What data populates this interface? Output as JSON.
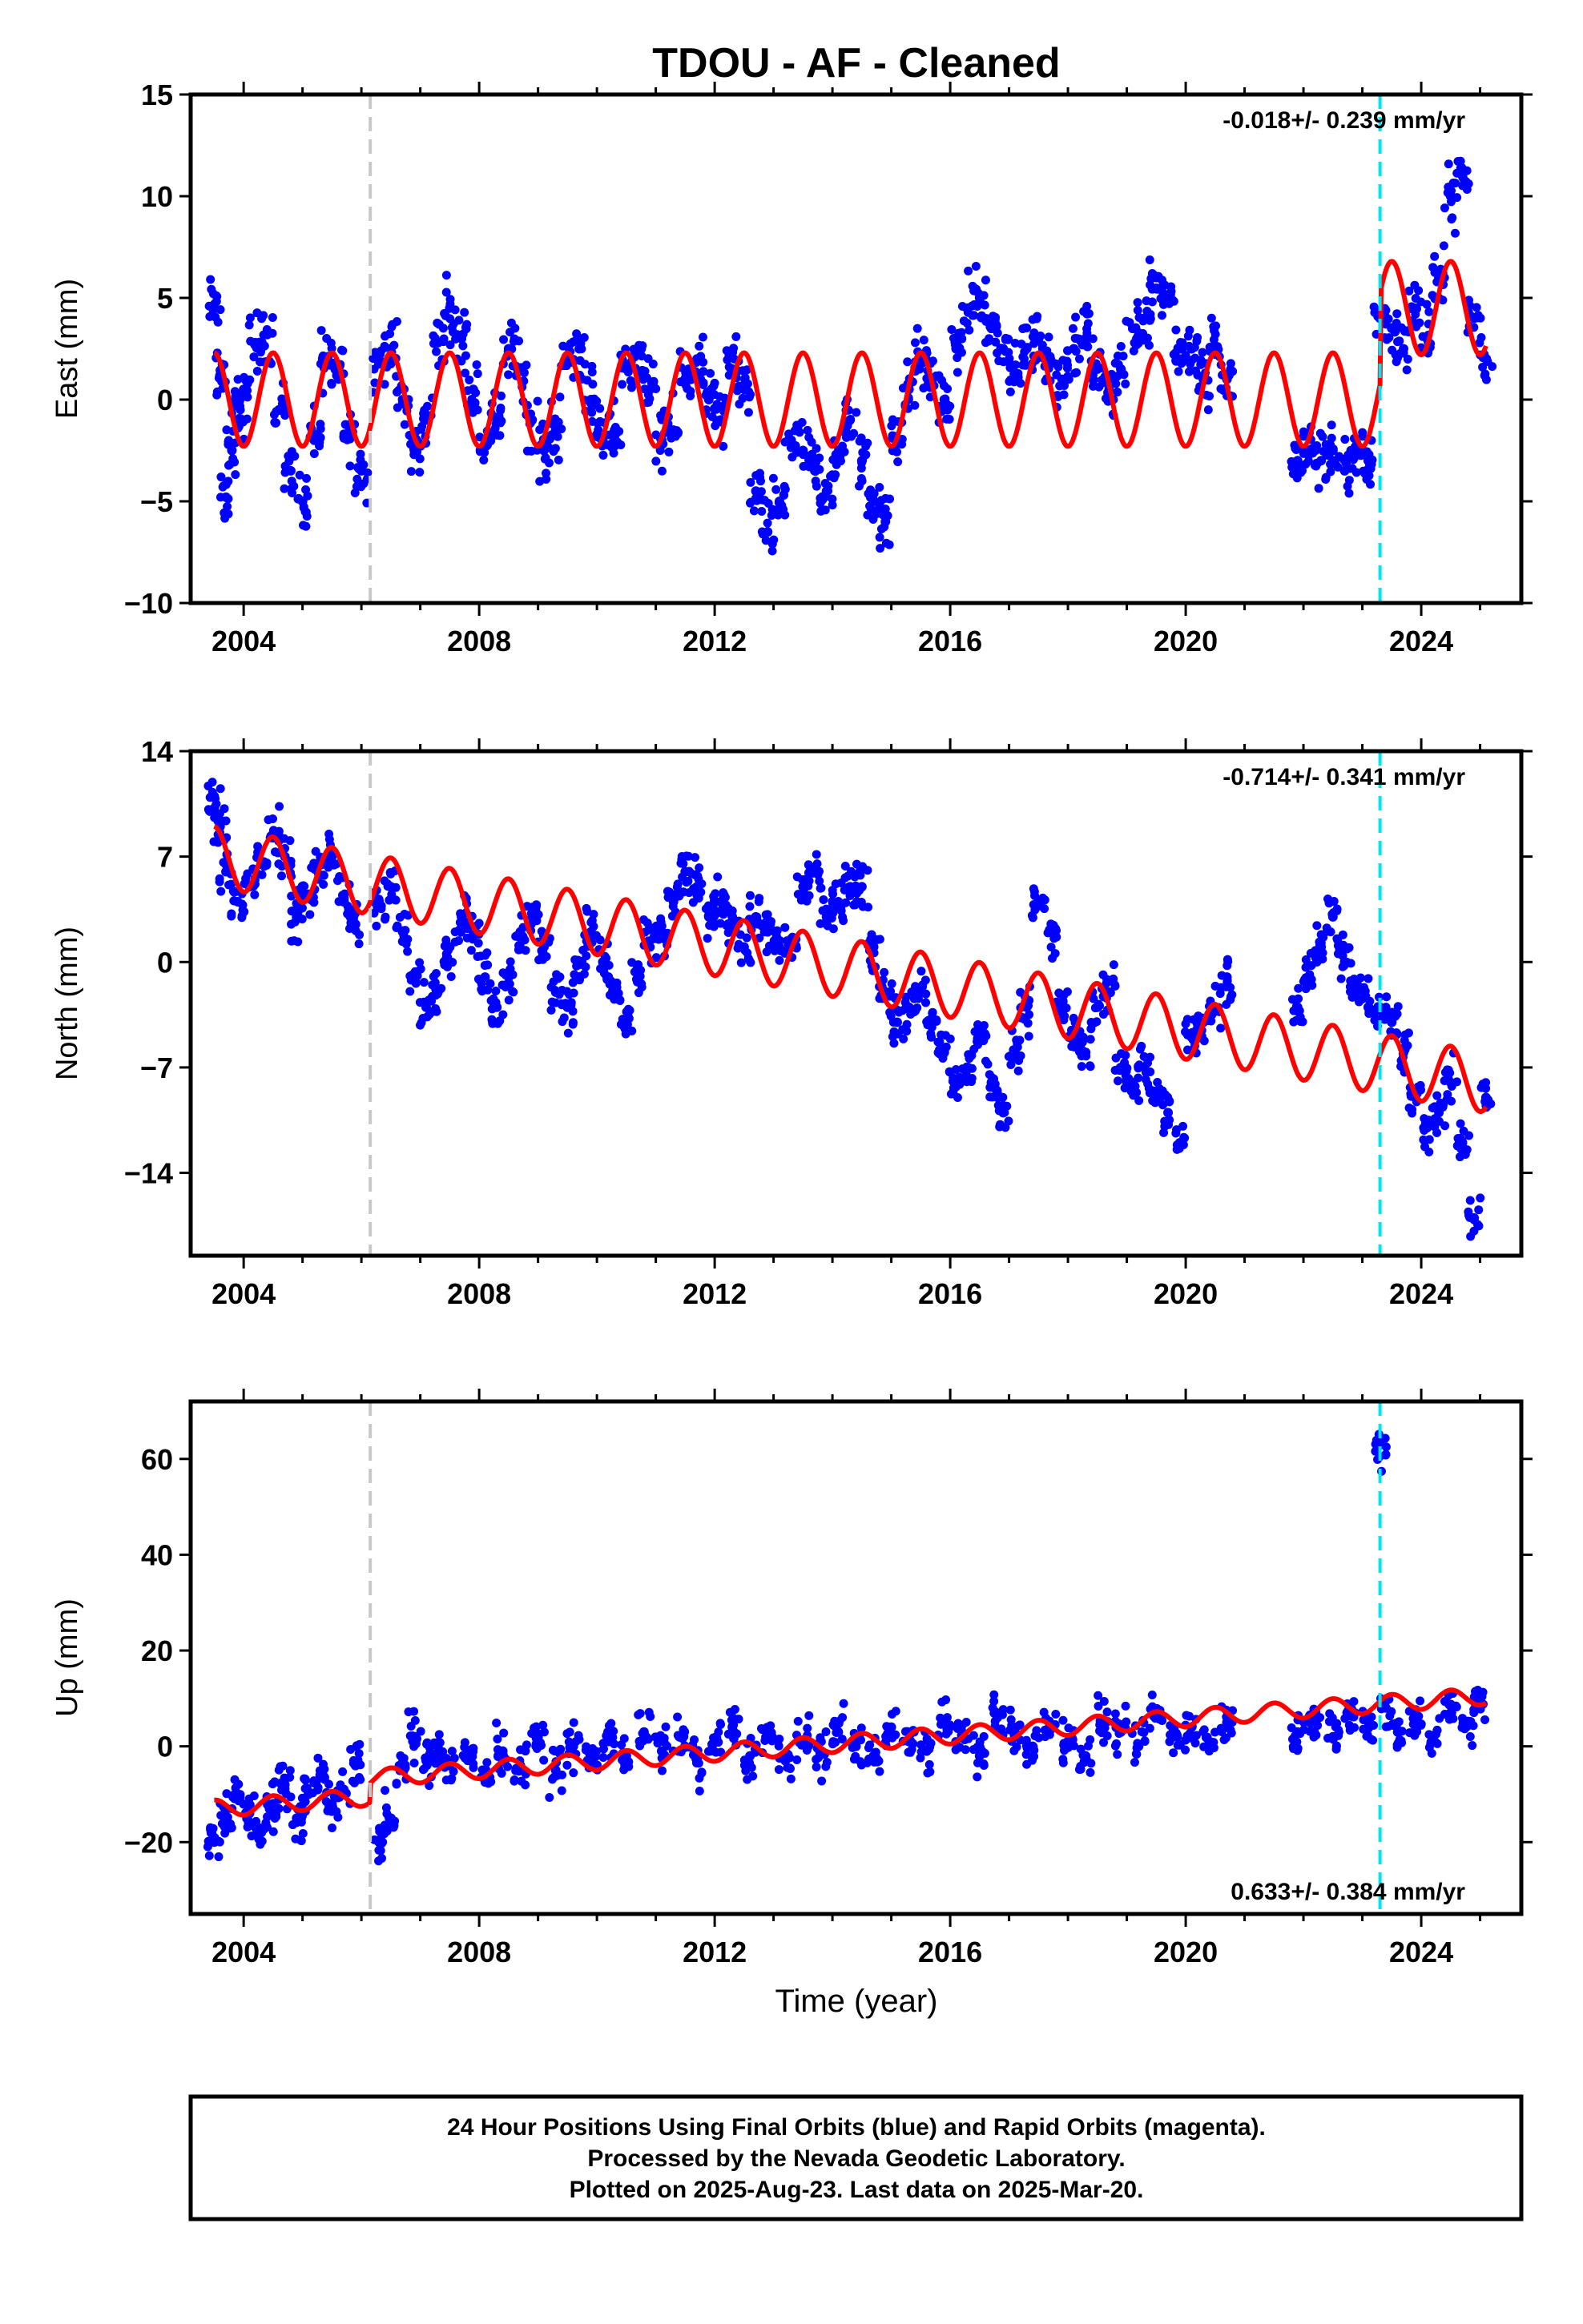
{
  "figure": {
    "title": "TDOU  - AF - Cleaned",
    "xlabel": "Time (year)"
  },
  "colors": {
    "points": "#0000ff",
    "fit": "#ff0000",
    "equipment_change": "#c8c8c8",
    "event_line": "#00e5ee"
  },
  "chart_data": [
    {
      "type": "scatter",
      "ylabel": "East (mm)",
      "xlim": [
        2003.1,
        2025.7
      ],
      "ylim": [
        -10,
        15
      ],
      "yticks": [
        -10,
        -5,
        0,
        5,
        10,
        15
      ],
      "ytick_labels": [
        "−10",
        "−5",
        "0",
        "5",
        "10",
        "15"
      ],
      "xticks": [
        2004,
        2008,
        2012,
        2016,
        2020,
        2024
      ],
      "xtick_labels": [
        "2004",
        "2008",
        "2012",
        "2016",
        "2020",
        "2024"
      ],
      "rate_label": "-0.018+/- 0.239 mm/yr",
      "rate_position": "top-right",
      "vlines": [
        {
          "x": 2006.15,
          "style": "gray-dashed"
        },
        {
          "x": 2023.3,
          "style": "cyan-dashed"
        }
      ],
      "series": [
        {
          "kind": "points",
          "x": [
            2003.5,
            2003.6,
            2003.7,
            2003.8,
            2003.9,
            2004.0,
            2004.2,
            2004.4,
            2004.6,
            2004.8,
            2005.0,
            2005.2,
            2005.4,
            2005.6,
            2005.8,
            2006.0,
            2006.3,
            2006.5,
            2006.7,
            2006.9,
            2007.1,
            2007.3,
            2007.5,
            2007.7,
            2007.9,
            2008.1,
            2008.3,
            2008.5,
            2008.7,
            2008.9,
            2009.1,
            2009.3,
            2009.5,
            2009.7,
            2009.9,
            2010.1,
            2010.3,
            2010.5,
            2010.7,
            2010.9,
            2011.1,
            2011.3,
            2011.5,
            2011.7,
            2011.9,
            2012.1,
            2012.3,
            2012.5,
            2012.7,
            2012.9,
            2013.1,
            2013.3,
            2013.5,
            2013.7,
            2013.9,
            2014.1,
            2014.3,
            2014.5,
            2014.7,
            2014.9,
            2015.1,
            2015.3,
            2015.5,
            2015.7,
            2015.9,
            2016.1,
            2016.3,
            2016.5,
            2016.7,
            2016.9,
            2017.1,
            2017.3,
            2017.5,
            2017.7,
            2017.9,
            2018.1,
            2018.3,
            2018.5,
            2018.7,
            2018.9,
            2019.1,
            2019.3,
            2019.5,
            2019.7,
            2019.9,
            2020.1,
            2020.3,
            2020.5,
            2020.7,
            2021.9,
            2022.1,
            2022.3,
            2022.5,
            2022.7,
            2022.9,
            2023.1,
            2023.3,
            2023.5,
            2023.7,
            2023.9,
            2024.1,
            2024.3,
            2024.5,
            2024.7,
            2024.9,
            2025.1
          ],
          "y": [
            4.5,
            1.2,
            -4.8,
            -2.5,
            -1.0,
            0.5,
            2.8,
            3.2,
            -0.5,
            -3.5,
            -5.0,
            -2.0,
            2.0,
            1.5,
            -1.5,
            -3.5,
            1.8,
            2.5,
            0.0,
            -2.5,
            -1.0,
            2.8,
            4.5,
            3.0,
            0.5,
            -2.0,
            -1.0,
            2.5,
            1.5,
            -1.0,
            -2.5,
            -1.5,
            2.0,
            2.5,
            0.0,
            -2.0,
            -1.5,
            1.5,
            2.5,
            0.5,
            -2.0,
            -1.5,
            1.0,
            2.0,
            0.0,
            -1.0,
            1.5,
            0.5,
            -4.5,
            -6.5,
            -5.0,
            -2.0,
            -2.5,
            -3.5,
            -4.5,
            -3.0,
            -1.0,
            -3.0,
            -5.0,
            -6.0,
            -2.0,
            0.5,
            2.0,
            1.0,
            0.0,
            2.5,
            4.5,
            5.0,
            3.5,
            2.5,
            1.0,
            2.5,
            3.0,
            2.0,
            1.0,
            2.5,
            3.0,
            1.5,
            0.5,
            1.5,
            3.5,
            4.0,
            6.0,
            5.0,
            2.5,
            2.5,
            1.0,
            2.5,
            1.0,
            -3.0,
            -2.5,
            -3.0,
            -2.5,
            -3.5,
            -2.5,
            -3.0,
            4.0,
            3.5,
            2.5,
            4.5,
            3.0,
            6.0,
            10.0,
            11.0,
            4.0,
            2.0
          ]
        },
        {
          "kind": "fit",
          "amplitude": 2.3,
          "offset_start": 0.0,
          "offset_end": 0.0,
          "step": [
            {
              "x": 2023.3,
              "amount": 4.5
            }
          ]
        }
      ]
    },
    {
      "type": "scatter",
      "ylabel": "North (mm)",
      "xlim": [
        2003.1,
        2025.7
      ],
      "ylim": [
        -19.5,
        14
      ],
      "yticks": [
        -14,
        -7,
        0,
        7,
        14
      ],
      "ytick_labels": [
        "−14",
        "−7",
        "0",
        "7",
        "14"
      ],
      "xticks": [
        2004,
        2008,
        2012,
        2016,
        2020,
        2024
      ],
      "xtick_labels": [
        "2004",
        "2008",
        "2012",
        "2016",
        "2020",
        "2024"
      ],
      "rate_label": "-0.714+/- 0.341 mm/yr",
      "rate_position": "top-right",
      "vlines": [
        {
          "x": 2006.15,
          "style": "gray-dashed"
        },
        {
          "x": 2023.3,
          "style": "cyan-dashed"
        }
      ],
      "series": [
        {
          "kind": "points",
          "x": [
            2003.5,
            2003.6,
            2003.7,
            2003.9,
            2004.1,
            2004.3,
            2004.5,
            2004.7,
            2004.9,
            2005.1,
            2005.3,
            2005.5,
            2005.7,
            2005.9,
            2006.3,
            2006.5,
            2006.7,
            2006.9,
            2007.1,
            2007.3,
            2007.5,
            2007.7,
            2007.9,
            2008.1,
            2008.3,
            2008.5,
            2008.7,
            2008.9,
            2009.1,
            2009.3,
            2009.5,
            2009.7,
            2009.9,
            2010.1,
            2010.3,
            2010.5,
            2010.7,
            2010.9,
            2011.1,
            2011.3,
            2011.5,
            2011.7,
            2011.9,
            2012.1,
            2012.3,
            2012.5,
            2012.7,
            2012.9,
            2013.1,
            2013.3,
            2013.5,
            2013.7,
            2013.9,
            2014.1,
            2014.3,
            2014.5,
            2014.7,
            2014.9,
            2015.1,
            2015.3,
            2015.5,
            2015.7,
            2015.9,
            2016.1,
            2016.3,
            2016.5,
            2016.7,
            2016.9,
            2017.1,
            2017.3,
            2017.5,
            2017.7,
            2017.9,
            2018.1,
            2018.3,
            2018.5,
            2018.7,
            2018.9,
            2019.1,
            2019.3,
            2019.5,
            2019.7,
            2019.9,
            2020.1,
            2020.3,
            2020.5,
            2020.7,
            2021.9,
            2022.1,
            2022.3,
            2022.5,
            2022.7,
            2022.9,
            2023.1,
            2023.3,
            2023.5,
            2023.7,
            2023.9,
            2024.1,
            2024.3,
            2024.5,
            2024.7,
            2024.9,
            2025.1
          ],
          "y": [
            11.0,
            9.0,
            6.0,
            4.0,
            5.0,
            6.5,
            8.5,
            7.0,
            3.0,
            4.5,
            6.5,
            7.0,
            4.0,
            2.5,
            4.0,
            5.0,
            2.0,
            -1.0,
            -3.0,
            -2.0,
            1.0,
            3.0,
            2.0,
            -1.0,
            -3.0,
            -1.0,
            2.0,
            3.0,
            1.0,
            -2.0,
            -3.0,
            0.0,
            2.0,
            0.0,
            -2.0,
            -4.0,
            -1.0,
            1.0,
            2.0,
            4.0,
            6.0,
            5.0,
            3.0,
            4.0,
            3.0,
            1.0,
            3.0,
            2.0,
            1.0,
            1.0,
            5.0,
            6.0,
            3.0,
            4.0,
            5.0,
            5.0,
            1.0,
            -2.0,
            -4.0,
            -3.0,
            -2.0,
            -4.0,
            -6.0,
            -8.0,
            -7.0,
            -5.0,
            -8.0,
            -10.0,
            -6.0,
            -3.0,
            4.0,
            2.0,
            -3.0,
            -5.0,
            -6.0,
            -3.0,
            -2.0,
            -7.0,
            -8.0,
            -7.0,
            -9.0,
            -10.0,
            -12.0,
            -5.0,
            -4.0,
            -3.0,
            -1.0,
            -3.0,
            -1.0,
            1.0,
            3.0,
            0.0,
            -2.0,
            -3.0,
            -3.0,
            -4.0,
            -6.0,
            -9.0,
            -11.0,
            -10.0,
            -8.0,
            -12.0,
            -17.0,
            -9.0
          ]
        },
        {
          "kind": "fit",
          "amplitude": 2.0,
          "offset_start": 7.0,
          "offset_end": -8.0,
          "step": []
        }
      ]
    },
    {
      "type": "scatter",
      "ylabel": "Up (mm)",
      "xlim": [
        2003.1,
        2025.7
      ],
      "ylim": [
        -35,
        72
      ],
      "yticks": [
        -20,
        0,
        20,
        40,
        60
      ],
      "ytick_labels": [
        "−20",
        "0",
        "20",
        "40",
        "60"
      ],
      "xticks": [
        2004,
        2008,
        2012,
        2016,
        2020,
        2024
      ],
      "xtick_labels": [
        "2004",
        "2008",
        "2012",
        "2016",
        "2020",
        "2024"
      ],
      "rate_label": "0.633+/- 0.384 mm/yr",
      "rate_position": "bottom-right",
      "vlines": [
        {
          "x": 2006.15,
          "style": "gray-dashed"
        },
        {
          "x": 2023.3,
          "style": "cyan-dashed"
        }
      ],
      "series": [
        {
          "kind": "points",
          "x": [
            2003.5,
            2003.7,
            2003.9,
            2004.1,
            2004.3,
            2004.5,
            2004.7,
            2004.9,
            2005.1,
            2005.3,
            2005.5,
            2005.7,
            2005.9,
            2006.3,
            2006.5,
            2006.7,
            2006.9,
            2007.1,
            2007.3,
            2007.5,
            2007.8,
            2008.1,
            2008.4,
            2008.7,
            2009.0,
            2009.3,
            2009.6,
            2009.9,
            2010.2,
            2010.5,
            2010.8,
            2011.1,
            2011.4,
            2011.7,
            2012.0,
            2012.3,
            2012.6,
            2012.9,
            2013.2,
            2013.5,
            2013.8,
            2014.1,
            2014.4,
            2014.7,
            2015.0,
            2015.3,
            2015.6,
            2015.9,
            2016.2,
            2016.5,
            2016.8,
            2017.1,
            2017.4,
            2017.7,
            2018.0,
            2018.3,
            2018.6,
            2018.9,
            2019.2,
            2019.5,
            2019.8,
            2020.1,
            2020.4,
            2020.7,
            2021.9,
            2022.2,
            2022.5,
            2022.8,
            2023.1,
            2023.3,
            2023.4,
            2023.6,
            2023.9,
            2024.2,
            2024.5,
            2024.8,
            2025.0
          ],
          "y": [
            -20,
            -15,
            -10,
            -14,
            -18,
            -12,
            -8,
            -15,
            -10,
            -6,
            -12,
            -9,
            -4,
            -20,
            -15,
            -5,
            2,
            -3,
            0,
            -4,
            -2,
            -6,
            -1,
            -4,
            2,
            -5,
            0,
            -3,
            1,
            -2,
            3,
            -1,
            2,
            -3,
            1,
            4,
            -2,
            2,
            -3,
            1,
            -1,
            3,
            0,
            -2,
            4,
            1,
            -1,
            5,
            2,
            -2,
            6,
            3,
            0,
            4,
            1,
            -2,
            5,
            3,
            0,
            6,
            2,
            4,
            1,
            5,
            3,
            6,
            2,
            7,
            4,
            63,
            8,
            3,
            6,
            2,
            7,
            5,
            9
          ]
        },
        {
          "kind": "fit",
          "amplitude": 1.8,
          "offset_start": -13.0,
          "offset_end": 6.5,
          "step": [
            {
              "x": 2006.15,
              "amount": 4.0
            }
          ]
        }
      ]
    }
  ],
  "footer": {
    "line1": "24 Hour Positions Using Final Orbits (blue) and Rapid Orbits (magenta).",
    "line2": "Processed by the Nevada Geodetic Laboratory.",
    "line3": "Plotted on 2025-Aug-23. Last data on 2025-Mar-20."
  }
}
